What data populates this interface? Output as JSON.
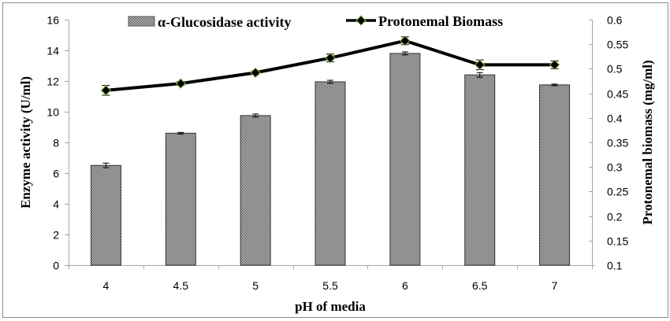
{
  "chart_data": {
    "type": "bar",
    "title": "",
    "categories": [
      "4",
      "4.5",
      "5",
      "5.5",
      "6",
      "6.5",
      "7"
    ],
    "xlabel": "pH of media",
    "series": [
      {
        "name": "α-Glucosidase activity",
        "type": "bar",
        "axis": "left",
        "values": [
          6.5,
          8.6,
          9.75,
          11.95,
          13.8,
          12.4,
          11.75
        ],
        "errors": [
          0.15,
          0.05,
          0.1,
          0.1,
          0.1,
          0.15,
          0.05
        ]
      },
      {
        "name": "Protonemal Biomass",
        "type": "line",
        "axis": "right",
        "values": [
          0.456,
          0.47,
          0.492,
          0.522,
          0.557,
          0.508,
          0.508
        ],
        "errors": [
          0.01,
          0.004,
          0.004,
          0.008,
          0.008,
          0.01,
          0.008
        ]
      }
    ],
    "ylabel": "Enzyme activity (U/ml)",
    "ylim": [
      0,
      16
    ],
    "yticks": [
      "0",
      "2",
      "4",
      "6",
      "8",
      "10",
      "12",
      "14",
      "16"
    ],
    "y2label": "Protonemal biomass (mg/ml)",
    "y2lim": [
      0.1,
      0.6
    ],
    "y2ticks": [
      "0.1",
      "0.15",
      "0.2",
      "0.25",
      "0.3",
      "0.35",
      "0.4",
      "0.45",
      "0.5",
      "0.55",
      "0.6"
    ],
    "grid": false,
    "legend": "top-center",
    "colors": {
      "bar_fill": "#8a8a8a",
      "bar_border": "#000000",
      "line": "#000000",
      "marker_edge": "#8fbc3f",
      "axis": "#a6a6a6",
      "frame": "#8c8c8c"
    }
  }
}
